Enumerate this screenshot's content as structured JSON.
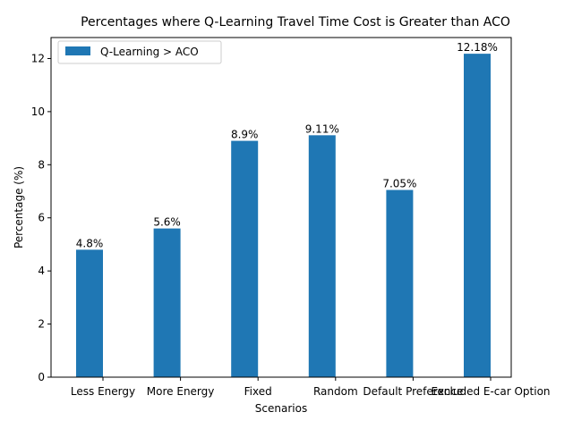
{
  "chart_data": {
    "type": "bar",
    "title": "Percentages where Q-Learning Travel Time Cost is Greater than ACO",
    "xlabel": "Scenarios",
    "ylabel": "Percentage (%)",
    "ylim": [
      0,
      12.79
    ],
    "yticks": [
      0,
      2,
      4,
      6,
      8,
      10,
      12
    ],
    "categories": [
      "Less Energy",
      "More Energy",
      "Fixed",
      "Random",
      "Default Preference",
      "Excluded E-car Option"
    ],
    "series": [
      {
        "name": "Q-Learning > ACO",
        "color": "#1f77b4",
        "values": [
          4.8,
          5.6,
          8.9,
          9.11,
          7.05,
          12.18
        ],
        "value_labels": [
          "4.8%",
          "5.6%",
          "8.9%",
          "9.11%",
          "7.05%",
          "12.18%"
        ]
      }
    ],
    "grid": false,
    "legend_position": "upper-left"
  }
}
